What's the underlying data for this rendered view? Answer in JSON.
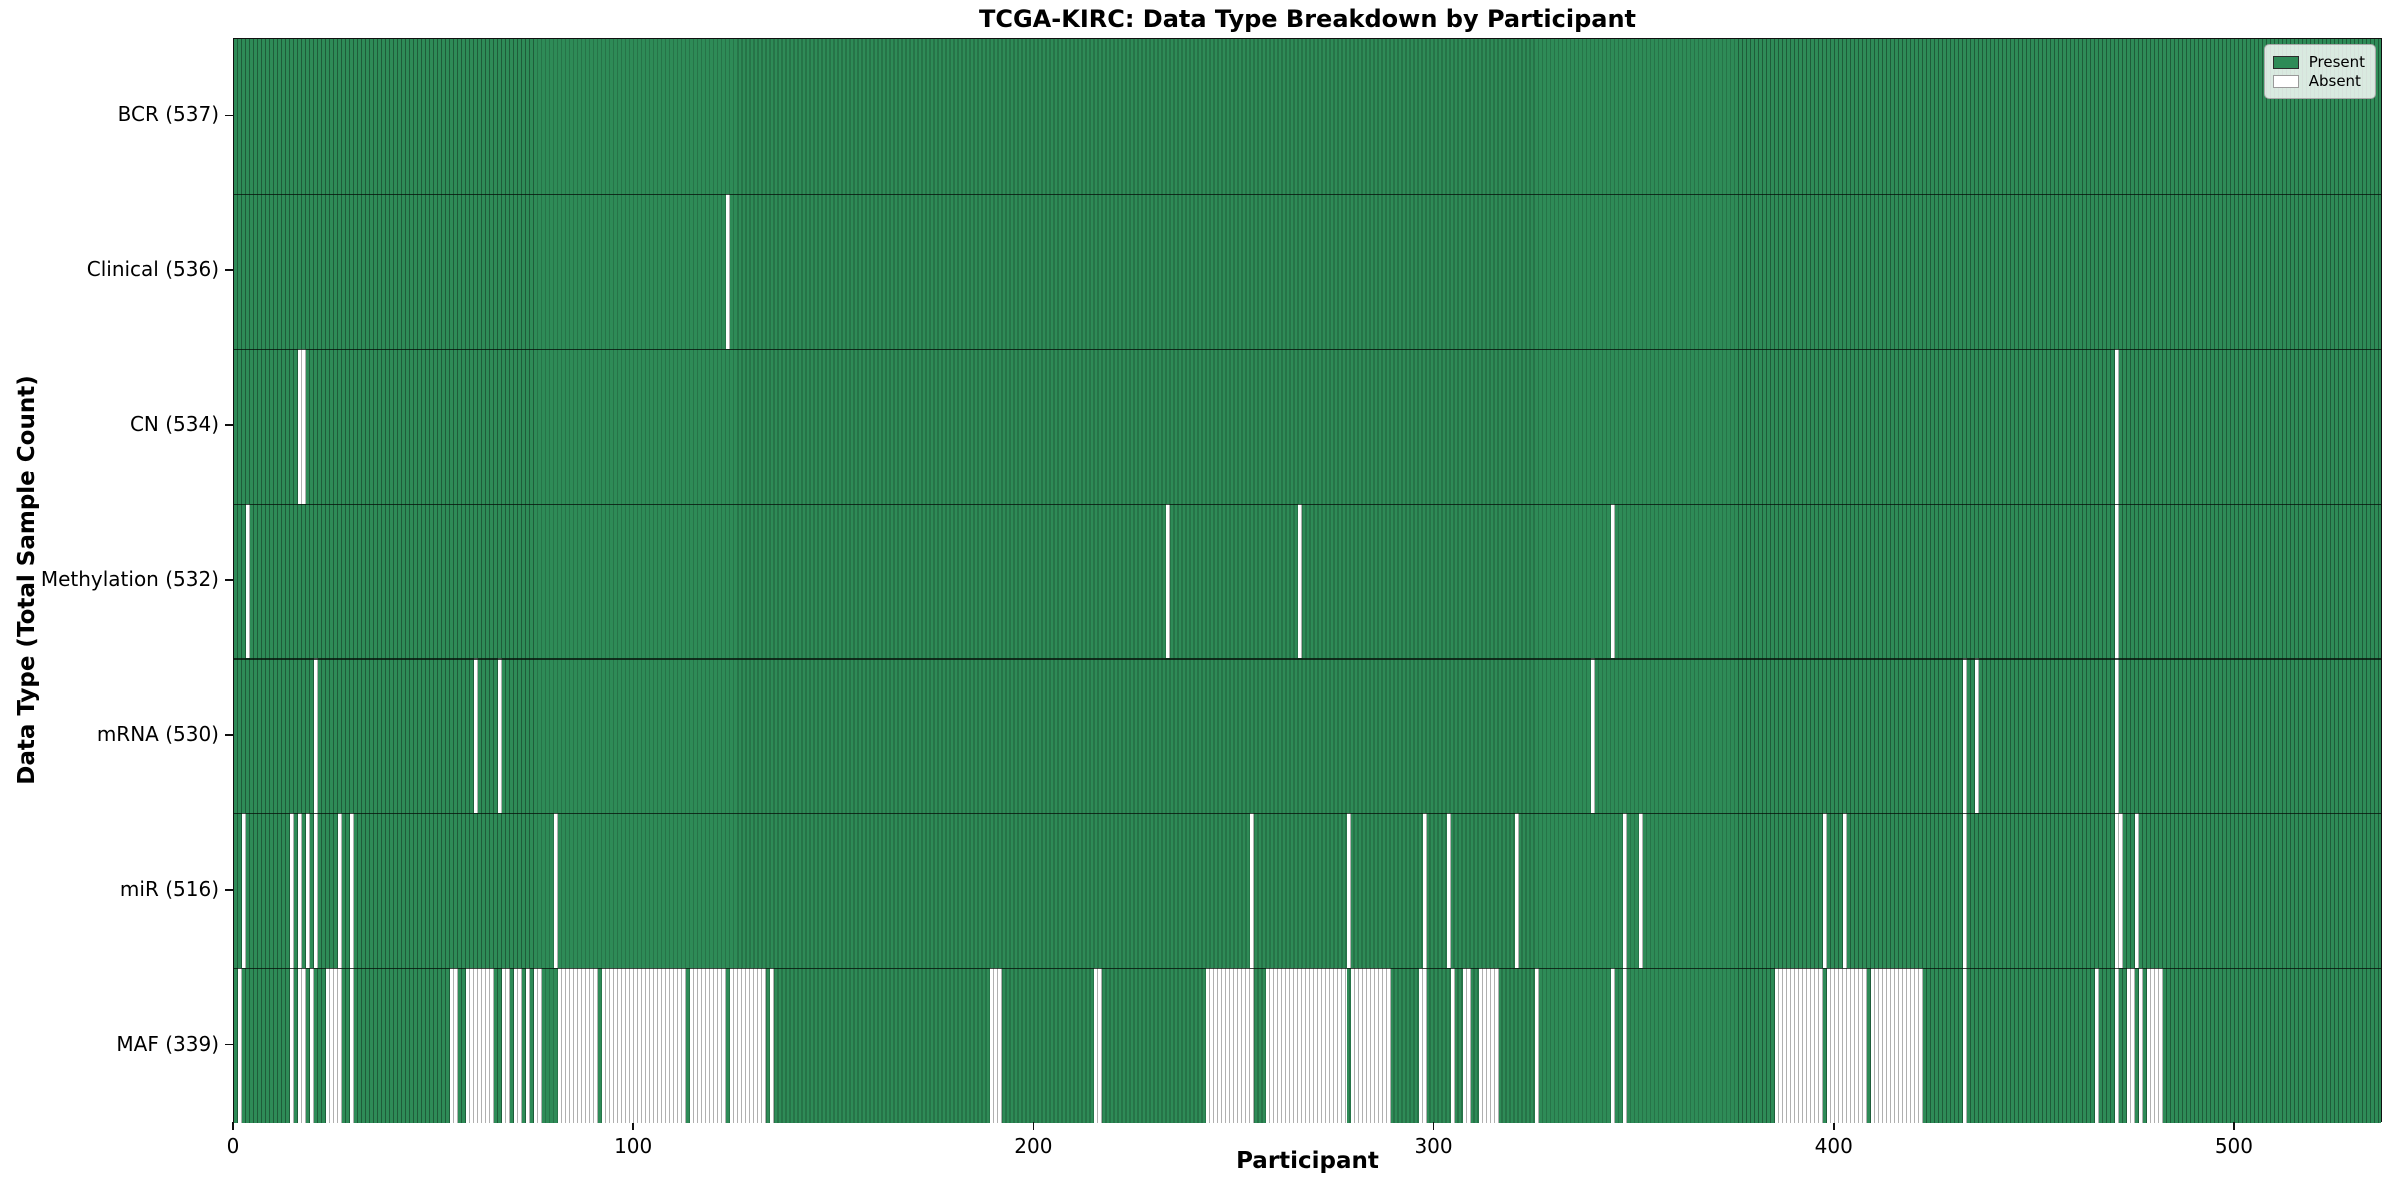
{
  "title": "TCGA-KIRC: Data Type Breakdown by Participant",
  "x_axis_label": "Participant",
  "y_axis_label": "Data Type (Total Sample Count)",
  "legend": {
    "present_label": "Present",
    "absent_label": "Absent"
  },
  "colors": {
    "present": "#2e8b57",
    "present_edge": "#1e5c39",
    "absent": "#ffffff",
    "absent_edge": "#b0b0b0",
    "axis": "#101010"
  },
  "chart_data": {
    "type": "heatmap",
    "title": "TCGA-KIRC: Data Type Breakdown by Participant",
    "xlabel": "Participant",
    "ylabel": "Data Type (Total Sample Count)",
    "legend_entries": [
      "Present",
      "Absent"
    ],
    "legend_position": "upper right",
    "grid": false,
    "n_participants": 537,
    "x_range": [
      0,
      537
    ],
    "x_ticks": [
      0,
      100,
      200,
      300,
      400,
      500
    ],
    "cell_states": [
      "present",
      "absent"
    ],
    "note": "Each row is a data type; each of the 537 columns is a participant. Green = sample present, white = absent. Absent ranges are inclusive participant-index ranges read from the figure (approximate for dense MAF row).",
    "rows": [
      {
        "label": "BCR (537)",
        "data_type": "BCR",
        "present_count": 537,
        "absent_count": 0,
        "absent_ranges": []
      },
      {
        "label": "Clinical (536)",
        "data_type": "Clinical",
        "present_count": 536,
        "absent_count": 1,
        "absent_ranges": [
          [
            123,
            123
          ]
        ]
      },
      {
        "label": "CN (534)",
        "data_type": "CN",
        "present_count": 534,
        "absent_count": 3,
        "absent_ranges": [
          [
            16,
            17
          ],
          [
            470,
            470
          ]
        ]
      },
      {
        "label": "Methylation (532)",
        "data_type": "Methylation",
        "present_count": 532,
        "absent_count": 5,
        "absent_ranges": [
          [
            3,
            3
          ],
          [
            233,
            233
          ],
          [
            266,
            266
          ],
          [
            344,
            344
          ],
          [
            470,
            470
          ]
        ]
      },
      {
        "label": "mRNA (530)",
        "data_type": "mRNA",
        "present_count": 530,
        "absent_count": 7,
        "absent_ranges": [
          [
            20,
            20
          ],
          [
            60,
            60
          ],
          [
            66,
            66
          ],
          [
            339,
            339
          ],
          [
            432,
            432
          ],
          [
            435,
            435
          ],
          [
            470,
            470
          ]
        ]
      },
      {
        "label": "miR (516)",
        "data_type": "miR",
        "present_count": 516,
        "absent_count": 21,
        "absent_ranges": [
          [
            2,
            2
          ],
          [
            14,
            14
          ],
          [
            16,
            16
          ],
          [
            18,
            18
          ],
          [
            20,
            20
          ],
          [
            26,
            26
          ],
          [
            29,
            29
          ],
          [
            80,
            80
          ],
          [
            254,
            254
          ],
          [
            278,
            278
          ],
          [
            297,
            297
          ],
          [
            303,
            303
          ],
          [
            320,
            320
          ],
          [
            347,
            347
          ],
          [
            351,
            351
          ],
          [
            397,
            397
          ],
          [
            402,
            402
          ],
          [
            432,
            432
          ],
          [
            470,
            471
          ],
          [
            475,
            475
          ]
        ]
      },
      {
        "label": "MAF (339)",
        "data_type": "MAF",
        "present_count": 339,
        "absent_count": 198,
        "absent_ranges": [
          [
            1,
            1
          ],
          [
            14,
            14
          ],
          [
            16,
            17
          ],
          [
            19,
            19
          ],
          [
            23,
            26
          ],
          [
            29,
            29
          ],
          [
            54,
            55
          ],
          [
            58,
            64
          ],
          [
            67,
            68
          ],
          [
            70,
            71
          ],
          [
            73,
            73
          ],
          [
            75,
            76
          ],
          [
            81,
            90
          ],
          [
            92,
            112
          ],
          [
            114,
            122
          ],
          [
            124,
            132
          ],
          [
            134,
            134
          ],
          [
            189,
            191
          ],
          [
            215,
            216
          ],
          [
            243,
            254
          ],
          [
            258,
            277
          ],
          [
            279,
            288
          ],
          [
            296,
            297
          ],
          [
            304,
            304
          ],
          [
            307,
            308
          ],
          [
            311,
            315
          ],
          [
            325,
            325
          ],
          [
            344,
            344
          ],
          [
            347,
            347
          ],
          [
            385,
            396
          ],
          [
            398,
            407
          ],
          [
            409,
            421
          ],
          [
            432,
            432
          ],
          [
            465,
            465
          ],
          [
            470,
            470
          ],
          [
            473,
            474
          ],
          [
            476,
            476
          ],
          [
            478,
            481
          ]
        ]
      }
    ]
  }
}
